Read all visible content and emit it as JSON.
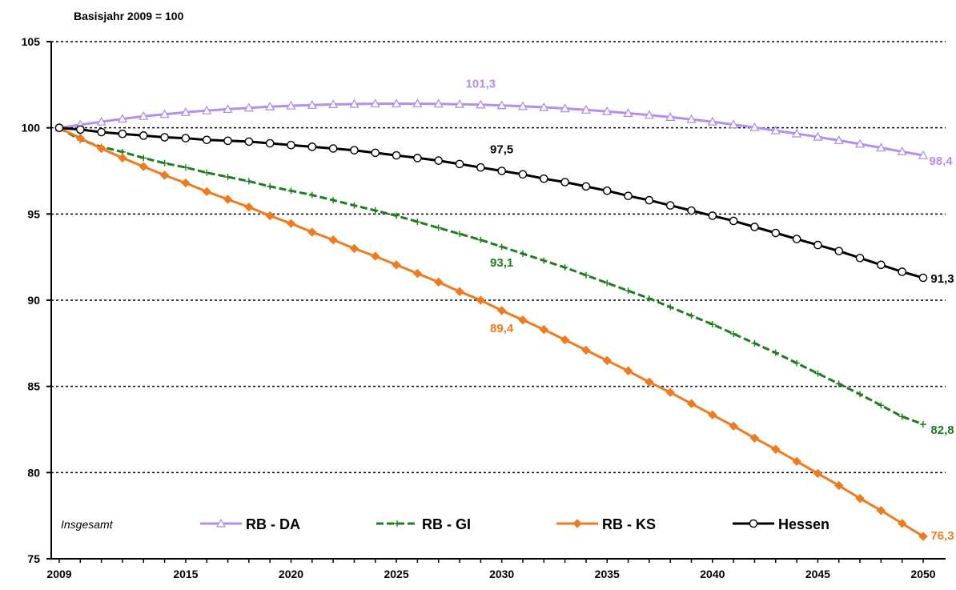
{
  "chart_data": {
    "type": "line",
    "title": "",
    "subtitle": "Basisjahr 2009 = 100",
    "xlabel": "",
    "ylabel": "",
    "xlim": [
      2009,
      2050
    ],
    "ylim": [
      75,
      105
    ],
    "x_ticks": [
      2009,
      2015,
      2020,
      2025,
      2030,
      2035,
      2040,
      2045,
      2050
    ],
    "y_ticks": [
      75,
      80,
      85,
      90,
      95,
      100,
      105
    ],
    "grid": "horizontal dotted",
    "legend_position": "bottom-inside",
    "legend_note": "Insgesamt",
    "series": [
      {
        "name": "RB - DA",
        "color": "#b48ef0",
        "marker": "triangle-open",
        "x": [
          2009,
          2010,
          2011,
          2012,
          2013,
          2014,
          2015,
          2016,
          2017,
          2018,
          2019,
          2020,
          2021,
          2022,
          2023,
          2024,
          2025,
          2026,
          2027,
          2028,
          2029,
          2030,
          2031,
          2032,
          2033,
          2034,
          2035,
          2036,
          2037,
          2038,
          2039,
          2040,
          2041,
          2042,
          2043,
          2044,
          2045,
          2046,
          2047,
          2048,
          2049,
          2050
        ],
        "values": [
          100,
          100.18,
          100.35,
          100.52,
          100.67,
          100.79,
          100.9,
          101.0,
          101.08,
          101.16,
          101.23,
          101.28,
          101.32,
          101.36,
          101.38,
          101.4,
          101.4,
          101.4,
          101.39,
          101.37,
          101.34,
          101.3,
          101.25,
          101.19,
          101.12,
          101.04,
          100.95,
          100.85,
          100.74,
          100.62,
          100.49,
          100.35,
          100.19,
          100.02,
          99.84,
          99.66,
          99.47,
          99.27,
          99.06,
          98.84,
          98.62,
          98.4
        ]
      },
      {
        "name": "RB - GI",
        "color": "#1e7d1e",
        "marker": "plus",
        "x": [
          2009,
          2010,
          2011,
          2012,
          2013,
          2014,
          2015,
          2016,
          2017,
          2018,
          2019,
          2020,
          2021,
          2022,
          2023,
          2024,
          2025,
          2026,
          2027,
          2028,
          2029,
          2030,
          2031,
          2032,
          2033,
          2034,
          2035,
          2036,
          2037,
          2038,
          2039,
          2040,
          2041,
          2042,
          2043,
          2044,
          2045,
          2046,
          2047,
          2048,
          2049,
          2050
        ],
        "values": [
          100,
          99.3,
          98.9,
          98.6,
          98.25,
          97.95,
          97.7,
          97.4,
          97.15,
          96.9,
          96.6,
          96.35,
          96.1,
          95.8,
          95.5,
          95.2,
          94.9,
          94.55,
          94.2,
          93.85,
          93.5,
          93.1,
          92.7,
          92.3,
          91.9,
          91.45,
          91.0,
          90.55,
          90.1,
          89.6,
          89.1,
          88.6,
          88.05,
          87.5,
          86.95,
          86.35,
          85.75,
          85.15,
          84.55,
          83.9,
          83.25,
          82.8
        ]
      },
      {
        "name": "RB - KS",
        "color": "#f07a1e",
        "marker": "diamond",
        "x": [
          2009,
          2010,
          2011,
          2012,
          2013,
          2014,
          2015,
          2016,
          2017,
          2018,
          2019,
          2020,
          2021,
          2022,
          2023,
          2024,
          2025,
          2026,
          2027,
          2028,
          2029,
          2030,
          2031,
          2032,
          2033,
          2034,
          2035,
          2036,
          2037,
          2038,
          2039,
          2040,
          2041,
          2042,
          2043,
          2044,
          2045,
          2046,
          2047,
          2048,
          2049,
          2050
        ],
        "values": [
          100,
          99.4,
          98.8,
          98.25,
          97.75,
          97.25,
          96.8,
          96.3,
          95.85,
          95.4,
          94.9,
          94.45,
          93.95,
          93.5,
          93.0,
          92.55,
          92.05,
          91.55,
          91.05,
          90.5,
          90.0,
          89.4,
          88.85,
          88.3,
          87.7,
          87.1,
          86.5,
          85.9,
          85.25,
          84.65,
          84.0,
          83.35,
          82.7,
          82.0,
          81.35,
          80.65,
          79.95,
          79.25,
          78.5,
          77.8,
          77.05,
          76.3
        ]
      },
      {
        "name": "Hessen",
        "color": "#000000",
        "marker": "circle-open",
        "x": [
          2009,
          2010,
          2011,
          2012,
          2013,
          2014,
          2015,
          2016,
          2017,
          2018,
          2019,
          2020,
          2021,
          2022,
          2023,
          2024,
          2025,
          2026,
          2027,
          2028,
          2029,
          2030,
          2031,
          2032,
          2033,
          2034,
          2035,
          2036,
          2037,
          2038,
          2039,
          2040,
          2041,
          2042,
          2043,
          2044,
          2045,
          2046,
          2047,
          2048,
          2049,
          2050
        ],
        "values": [
          100,
          99.9,
          99.75,
          99.65,
          99.55,
          99.45,
          99.4,
          99.3,
          99.25,
          99.2,
          99.1,
          99.0,
          98.9,
          98.8,
          98.7,
          98.55,
          98.4,
          98.25,
          98.1,
          97.9,
          97.7,
          97.5,
          97.3,
          97.05,
          96.85,
          96.6,
          96.35,
          96.05,
          95.8,
          95.5,
          95.2,
          94.9,
          94.6,
          94.25,
          93.9,
          93.55,
          93.2,
          92.85,
          92.45,
          92.05,
          91.65,
          91.3
        ]
      }
    ],
    "annotations": [
      {
        "text": "101,3",
        "x": 2029,
        "y": 101.3,
        "series": "RB - DA"
      },
      {
        "text": "98,4",
        "x": 2050,
        "y": 98.4,
        "series": "RB - DA"
      },
      {
        "text": "97,5",
        "x": 2030,
        "y": 97.5,
        "series": "Hessen"
      },
      {
        "text": "91,3",
        "x": 2050,
        "y": 91.3,
        "series": "Hessen"
      },
      {
        "text": "93,1",
        "x": 2030,
        "y": 93.1,
        "series": "RB - GI"
      },
      {
        "text": "82,8",
        "x": 2050,
        "y": 82.8,
        "series": "RB - GI"
      },
      {
        "text": "89,4",
        "x": 2030,
        "y": 89.4,
        "series": "RB - KS"
      },
      {
        "text": "76,3",
        "x": 2050,
        "y": 76.3,
        "series": "RB - KS"
      }
    ]
  }
}
